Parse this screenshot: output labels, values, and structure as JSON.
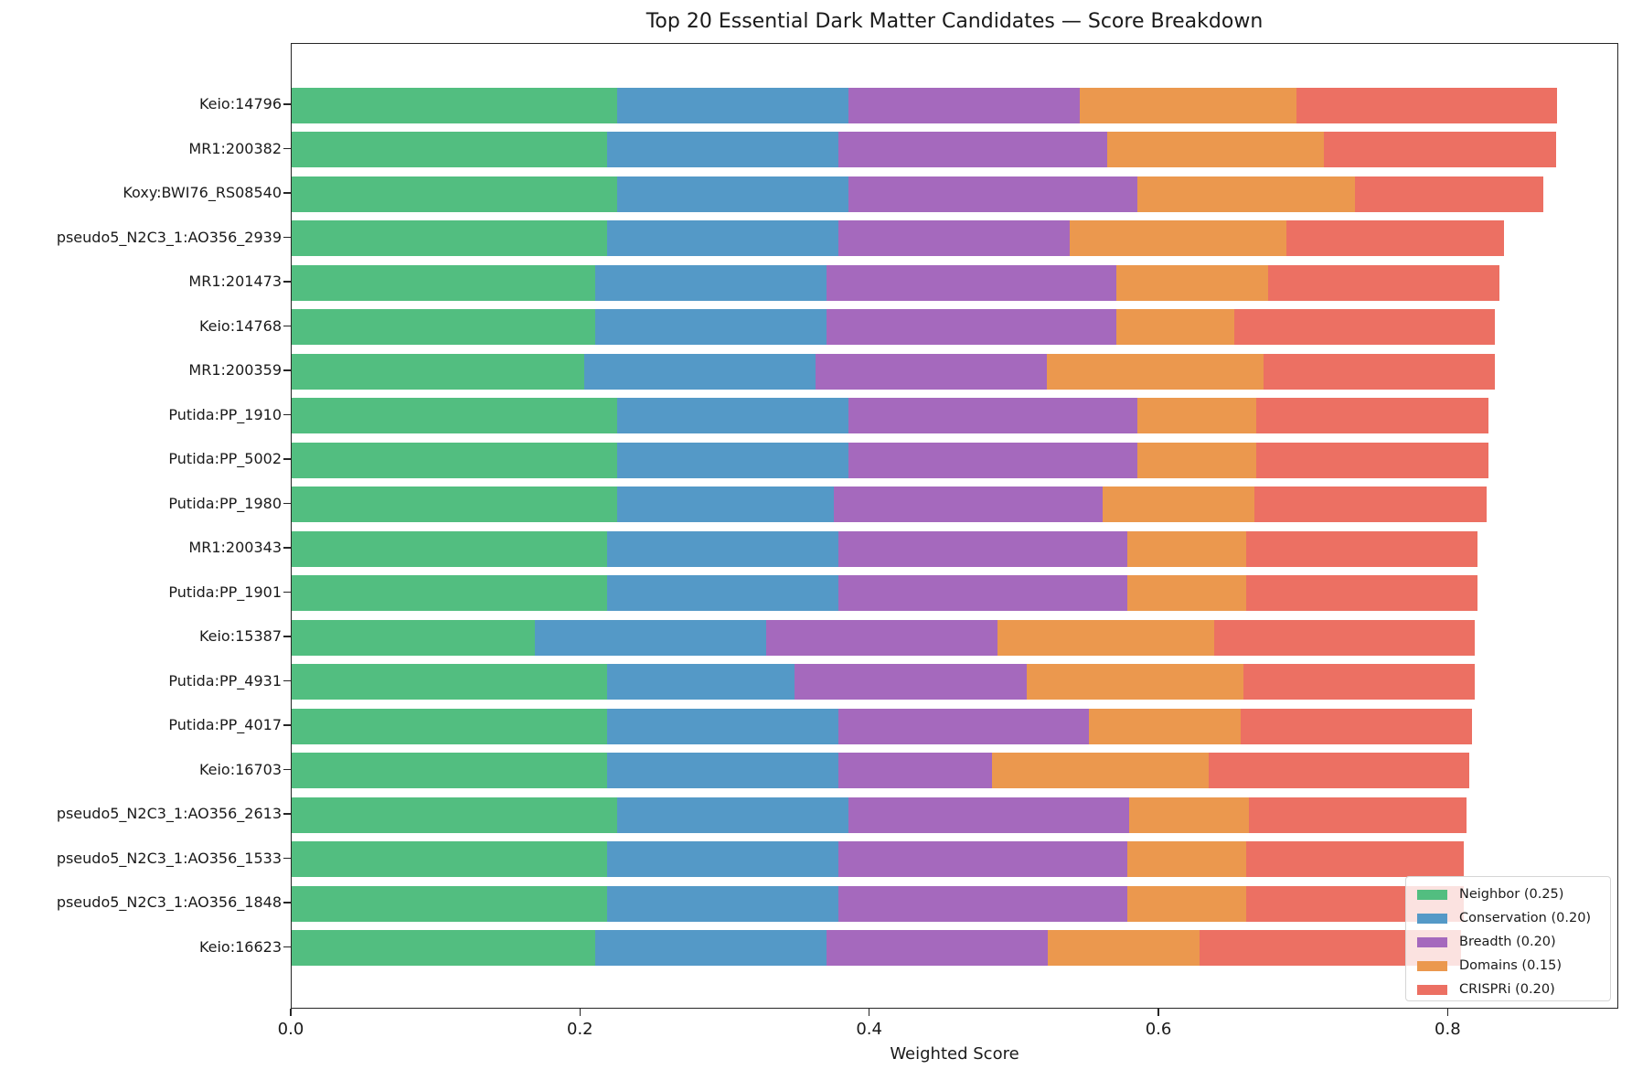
{
  "colors": {
    "Neighbor": "#52BE80",
    "Conservation": "#5499C7",
    "Breadth": "#A569BD",
    "Domains": "#EB984E",
    "CRISPRi": "#EC7063"
  },
  "chart_data": {
    "type": "bar",
    "orientation": "horizontal",
    "stacked": true,
    "title": "Top 20 Essential Dark Matter Candidates — Score Breakdown",
    "xlabel": "Weighted Score",
    "ylabel": "",
    "xlim": [
      0,
      0.918
    ],
    "xticks": [
      0.0,
      0.2,
      0.4,
      0.6,
      0.8
    ],
    "xtick_labels": [
      "0.0",
      "0.2",
      "0.4",
      "0.6",
      "0.8"
    ],
    "grid": false,
    "legend_position": "lower right",
    "categories": [
      "Keio:14796",
      "MR1:200382",
      "Koxy:BWI76_RS08540",
      "pseudo5_N2C3_1:AO356_2939",
      "MR1:201473",
      "Keio:14768",
      "MR1:200359",
      "Putida:PP_1910",
      "Putida:PP_5002",
      "Putida:PP_1980",
      "MR1:200343",
      "Putida:PP_1901",
      "Keio:15387",
      "Putida:PP_4931",
      "Putida:PP_4017",
      "Keio:16703",
      "pseudo5_N2C3_1:AO356_2613",
      "pseudo5_N2C3_1:AO356_1533",
      "pseudo5_N2C3_1:AO356_1848",
      "Keio:16623"
    ],
    "series": [
      {
        "name": "Neighbor (0.25)",
        "key": "Neighbor",
        "values": [
          0.225,
          0.218,
          0.225,
          0.218,
          0.21,
          0.21,
          0.202,
          0.225,
          0.225,
          0.225,
          0.218,
          0.218,
          0.168,
          0.218,
          0.218,
          0.218,
          0.225,
          0.218,
          0.218,
          0.21
        ]
      },
      {
        "name": "Conservation (0.20)",
        "key": "Conservation",
        "values": [
          0.16,
          0.16,
          0.16,
          0.16,
          0.16,
          0.16,
          0.16,
          0.16,
          0.16,
          0.15,
          0.16,
          0.16,
          0.16,
          0.13,
          0.16,
          0.16,
          0.16,
          0.16,
          0.16,
          0.16
        ]
      },
      {
        "name": "Breadth (0.20)",
        "key": "Breadth",
        "values": [
          0.16,
          0.186,
          0.2,
          0.16,
          0.2,
          0.2,
          0.16,
          0.2,
          0.2,
          0.186,
          0.2,
          0.2,
          0.16,
          0.16,
          0.173,
          0.106,
          0.194,
          0.2,
          0.2,
          0.153
        ]
      },
      {
        "name": "Domains (0.15)",
        "key": "Domains",
        "values": [
          0.15,
          0.15,
          0.15,
          0.15,
          0.105,
          0.082,
          0.15,
          0.082,
          0.082,
          0.105,
          0.082,
          0.082,
          0.15,
          0.15,
          0.105,
          0.15,
          0.083,
          0.082,
          0.082,
          0.105
        ]
      },
      {
        "name": "CRISPRi (0.20)",
        "key": "CRISPRi",
        "values": [
          0.18,
          0.16,
          0.13,
          0.15,
          0.16,
          0.18,
          0.16,
          0.16,
          0.16,
          0.16,
          0.16,
          0.16,
          0.18,
          0.16,
          0.16,
          0.18,
          0.15,
          0.15,
          0.15,
          0.18
        ]
      }
    ],
    "totals": [
      0.875,
      0.874,
      0.865,
      0.838,
      0.835,
      0.832,
      0.832,
      0.827,
      0.827,
      0.826,
      0.82,
      0.82,
      0.818,
      0.818,
      0.816,
      0.814,
      0.812,
      0.81,
      0.81,
      0.808
    ]
  }
}
